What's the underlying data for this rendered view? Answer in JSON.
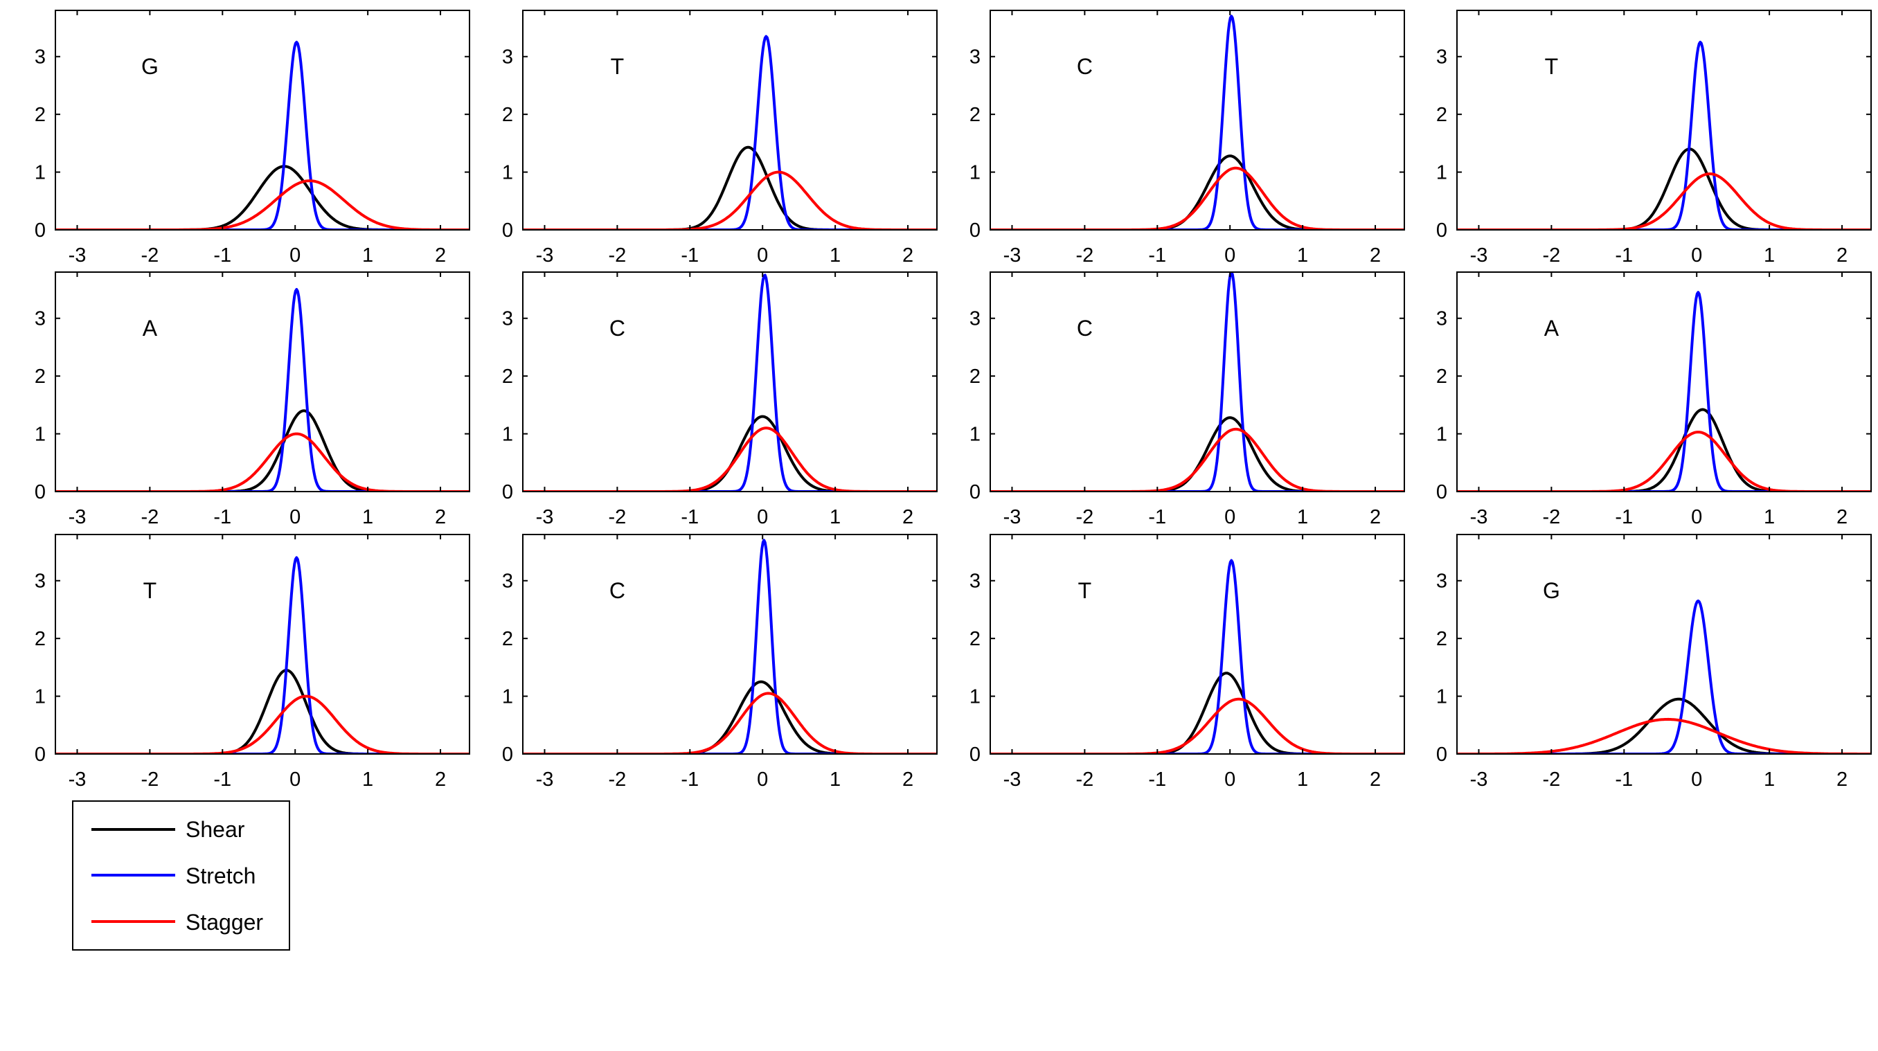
{
  "chart_data": {
    "type": "line",
    "layout": "3 rows x 4 columns of density plots",
    "xlim": [
      -3.3,
      2.4
    ],
    "ylim": [
      0,
      3.8
    ],
    "xticks": [
      -3,
      -2,
      -1,
      0,
      1,
      2
    ],
    "xtick_labels": [
      "-3",
      "-2",
      "-1",
      "0",
      "1",
      "2"
    ],
    "yticks": [
      0,
      1,
      2,
      3
    ],
    "ytick_labels": [
      "0",
      "1",
      "2",
      "3"
    ],
    "grid": false,
    "legend": {
      "placement": "below first column",
      "entries": [
        {
          "name": "Shear",
          "color": "#000000"
        },
        {
          "name": "Stretch",
          "color": "#0000ff"
        },
        {
          "name": "Stagger",
          "color": "#ff0000"
        }
      ]
    },
    "series_colors": {
      "Shear": "#000000",
      "Stretch": "#0000ff",
      "Stagger": "#ff0000"
    },
    "panels": [
      {
        "label": "G",
        "series": [
          {
            "name": "Shear",
            "mu": -0.15,
            "peak": 1.1,
            "sigma": 0.36
          },
          {
            "name": "Stretch",
            "mu": 0.02,
            "peak": 3.25,
            "sigma": 0.12
          },
          {
            "name": "Stagger",
            "mu": 0.2,
            "peak": 0.85,
            "sigma": 0.47
          }
        ]
      },
      {
        "label": "T",
        "series": [
          {
            "name": "Shear",
            "mu": -0.2,
            "peak": 1.43,
            "sigma": 0.28
          },
          {
            "name": "Stretch",
            "mu": 0.05,
            "peak": 3.35,
            "sigma": 0.12
          },
          {
            "name": "Stagger",
            "mu": 0.22,
            "peak": 1.0,
            "sigma": 0.4
          }
        ]
      },
      {
        "label": "C",
        "series": [
          {
            "name": "Shear",
            "mu": 0.0,
            "peak": 1.28,
            "sigma": 0.31
          },
          {
            "name": "Stretch",
            "mu": 0.02,
            "peak": 3.7,
            "sigma": 0.11
          },
          {
            "name": "Stagger",
            "mu": 0.08,
            "peak": 1.07,
            "sigma": 0.37
          }
        ]
      },
      {
        "label": "T",
        "series": [
          {
            "name": "Shear",
            "mu": -0.1,
            "peak": 1.4,
            "sigma": 0.28
          },
          {
            "name": "Stretch",
            "mu": 0.05,
            "peak": 3.25,
            "sigma": 0.12
          },
          {
            "name": "Stagger",
            "mu": 0.18,
            "peak": 0.97,
            "sigma": 0.4
          }
        ]
      },
      {
        "label": "A",
        "series": [
          {
            "name": "Shear",
            "mu": 0.12,
            "peak": 1.4,
            "sigma": 0.28
          },
          {
            "name": "Stretch",
            "mu": 0.02,
            "peak": 3.5,
            "sigma": 0.11
          },
          {
            "name": "Stagger",
            "mu": 0.02,
            "peak": 1.0,
            "sigma": 0.38
          }
        ]
      },
      {
        "label": "C",
        "series": [
          {
            "name": "Shear",
            "mu": 0.0,
            "peak": 1.3,
            "sigma": 0.3
          },
          {
            "name": "Stretch",
            "mu": 0.03,
            "peak": 3.75,
            "sigma": 0.11
          },
          {
            "name": "Stagger",
            "mu": 0.05,
            "peak": 1.1,
            "sigma": 0.36
          }
        ]
      },
      {
        "label": "C",
        "series": [
          {
            "name": "Shear",
            "mu": 0.0,
            "peak": 1.28,
            "sigma": 0.3
          },
          {
            "name": "Stretch",
            "mu": 0.02,
            "peak": 3.8,
            "sigma": 0.1
          },
          {
            "name": "Stagger",
            "mu": 0.08,
            "peak": 1.08,
            "sigma": 0.37
          }
        ]
      },
      {
        "label": "A",
        "series": [
          {
            "name": "Shear",
            "mu": 0.08,
            "peak": 1.42,
            "sigma": 0.28
          },
          {
            "name": "Stretch",
            "mu": 0.02,
            "peak": 3.45,
            "sigma": 0.11
          },
          {
            "name": "Stagger",
            "mu": 0.02,
            "peak": 1.03,
            "sigma": 0.38
          }
        ]
      },
      {
        "label": "T",
        "series": [
          {
            "name": "Shear",
            "mu": -0.12,
            "peak": 1.45,
            "sigma": 0.27
          },
          {
            "name": "Stretch",
            "mu": 0.02,
            "peak": 3.4,
            "sigma": 0.11
          },
          {
            "name": "Stagger",
            "mu": 0.15,
            "peak": 1.0,
            "sigma": 0.4
          }
        ]
      },
      {
        "label": "C",
        "series": [
          {
            "name": "Shear",
            "mu": -0.02,
            "peak": 1.25,
            "sigma": 0.31
          },
          {
            "name": "Stretch",
            "mu": 0.02,
            "peak": 3.7,
            "sigma": 0.1
          },
          {
            "name": "Stagger",
            "mu": 0.08,
            "peak": 1.05,
            "sigma": 0.37
          }
        ]
      },
      {
        "label": "T",
        "series": [
          {
            "name": "Shear",
            "mu": -0.05,
            "peak": 1.4,
            "sigma": 0.28
          },
          {
            "name": "Stretch",
            "mu": 0.02,
            "peak": 3.35,
            "sigma": 0.11
          },
          {
            "name": "Stagger",
            "mu": 0.12,
            "peak": 0.95,
            "sigma": 0.4
          }
        ]
      },
      {
        "label": "G",
        "series": [
          {
            "name": "Shear",
            "mu": -0.25,
            "peak": 0.95,
            "sigma": 0.4
          },
          {
            "name": "Stretch",
            "mu": 0.02,
            "peak": 2.65,
            "sigma": 0.14
          },
          {
            "name": "Stagger",
            "mu": -0.4,
            "peak": 0.6,
            "sigma": 0.7
          }
        ]
      }
    ]
  }
}
